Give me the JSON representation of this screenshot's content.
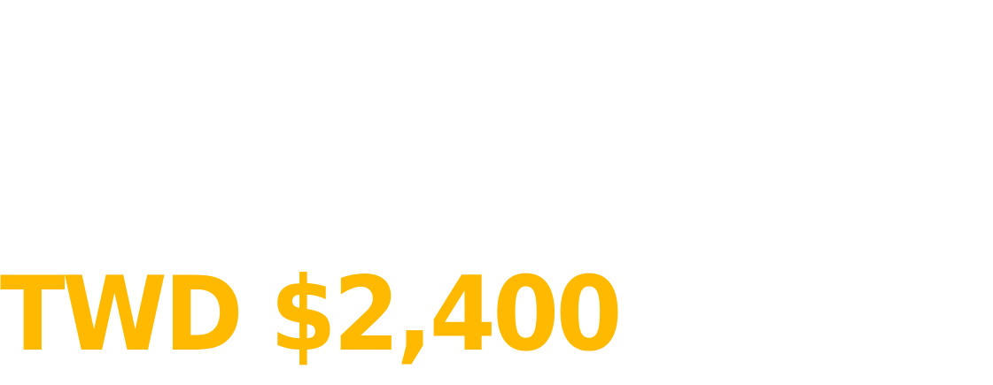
{
  "price": {
    "text": "TWD $2,400",
    "color": "#ffba00"
  },
  "background_color": "#ffffff"
}
